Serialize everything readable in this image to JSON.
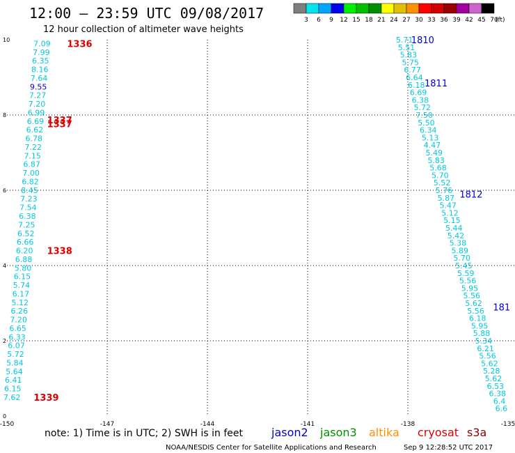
{
  "header": {
    "title": "12:00 — 23:59 UTC 09/08/2017",
    "subtitle": "12 hour collection of altimeter wave heights"
  },
  "colorbar": {
    "labels": [
      "3",
      "6",
      "9",
      "12",
      "15",
      "18",
      "21",
      "24",
      "27",
      "30",
      "33",
      "36",
      "39",
      "42",
      "45",
      "70",
      "(ft)"
    ],
    "colors": [
      "#7f7f7f",
      "#00e5ee",
      "#00a7ff",
      "#0000ee",
      "#00ee00",
      "#00c000",
      "#008f00",
      "#ffff00",
      "#e0c000",
      "#ff9000",
      "#ff0000",
      "#d40000",
      "#9b0000",
      "#a000a0",
      "#cc66cc",
      "#000000"
    ]
  },
  "footer": {
    "note": "note: 1) Time is in UTC; 2) SWH is in feet",
    "satellites": [
      {
        "name": "jason2",
        "color": "#0000cc"
      },
      {
        "name": "jason3",
        "color": "#008f00"
      },
      {
        "name": "altika",
        "color": "#ff9000"
      },
      {
        "name": "cryosat",
        "color": "#dd0000"
      },
      {
        "name": "s3a",
        "color": "#880000"
      }
    ],
    "credit": "NOAA/NESDIS Center for Satellite Applications and Research",
    "timestamp": "Sep  9 12:28:52 UTC 2017"
  },
  "chart_data": {
    "type": "scatter",
    "xlim": [
      -150,
      -135
    ],
    "ylim": [
      0,
      10
    ],
    "x_ticks": [
      "-150",
      "-147",
      "-144",
      "-141",
      "-138",
      "-135"
    ],
    "y_ticks": [
      "0",
      "2",
      "4",
      "6",
      "8",
      "10"
    ],
    "grid": true,
    "tracks": [
      {
        "x_top": -148.95,
        "x_bottom": -149.85,
        "y_top": 9.9,
        "y_bottom": 0.5,
        "values": [
          "7.09",
          "7.99",
          "6.35",
          "8.16",
          "7.64",
          "9.55",
          "7.27",
          "7.20",
          "6.99",
          "6.69",
          "6.62",
          "6.78",
          "7.22",
          "7.15",
          "6.87",
          "7.00",
          "6.82",
          "8.45",
          "7.23",
          "7.54",
          "6.38",
          "7.25",
          "6.52",
          "6.66",
          "6.20",
          "6.88",
          "5.80",
          "6.15",
          "5.74",
          "6.17",
          "5.12",
          "6.26",
          "7.20",
          "6.65",
          "6.33",
          "6.07",
          "5.72",
          "5.84",
          "5.64",
          "6.41",
          "6.15",
          "7.62"
        ],
        "value_colors": {
          "9.55": "#0000ee"
        }
      },
      {
        "x_top": -138.1,
        "x_bottom": -135.2,
        "y_top": 10.0,
        "y_bottom": 0.2,
        "values": [
          "5.71",
          "5.51",
          "5.83",
          "5.75",
          "6.77",
          "6.64",
          "6.18",
          "6.69",
          "6.38",
          "5.72",
          "7.50",
          "5.50",
          "6.34",
          "5.13",
          "4.47",
          "5.49",
          "5.83",
          "5.68",
          "5.70",
          "5.52",
          "5.76",
          "5.87",
          "5.47",
          "5.12",
          "5.15",
          "5.44",
          "5.42",
          "5.38",
          "5.89",
          "5.70",
          "5.45",
          "5.59",
          "5.56",
          "5.95",
          "5.56",
          "5.62",
          "5.56",
          "6.18",
          "5.95",
          "5.88",
          "5.34",
          "6.21",
          "5.56",
          "5.62",
          "5.28",
          "5.62",
          "6.53",
          "6.38",
          "6.4",
          "6.6"
        ]
      }
    ],
    "pass_labels": [
      {
        "text": "1336",
        "x": -148.2,
        "y": 9.9,
        "satellite": "cryosat"
      },
      {
        "text": "1337",
        "x": -148.8,
        "y": 7.87,
        "satellite": "cryosat"
      },
      {
        "text": "1337",
        "x": -148.8,
        "y": 7.77,
        "satellite": "cryosat"
      },
      {
        "text": "1338",
        "x": -148.8,
        "y": 4.4,
        "satellite": "cryosat"
      },
      {
        "text": "1339",
        "x": -149.2,
        "y": 0.5,
        "satellite": "cryosat"
      },
      {
        "text": "1810",
        "x": -137.9,
        "y": 10.0,
        "satellite": "jason2"
      },
      {
        "text": "1811",
        "x": -137.5,
        "y": 8.85,
        "satellite": "jason2"
      },
      {
        "text": "1812",
        "x": -136.45,
        "y": 5.9,
        "satellite": "jason2"
      },
      {
        "text": "181",
        "x": -135.45,
        "y": 2.9,
        "satellite": "jason2"
      }
    ]
  }
}
